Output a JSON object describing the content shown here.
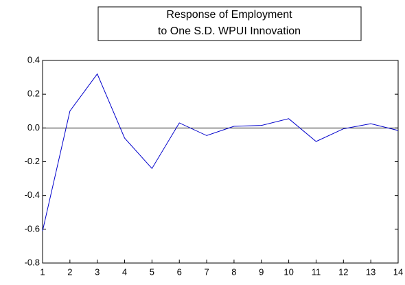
{
  "chart_data": {
    "type": "line",
    "title_lines": [
      "Response of Employment",
      "to One S.D. WPUI Innovation"
    ],
    "categories": [
      "1",
      "2",
      "3",
      "4",
      "5",
      "6",
      "7",
      "8",
      "9",
      "10",
      "11",
      "12",
      "13",
      "14"
    ],
    "series": [
      {
        "color": "#0000cc",
        "values": [
          -0.61,
          0.1,
          0.32,
          -0.06,
          -0.24,
          0.03,
          -0.045,
          0.01,
          0.015,
          0.055,
          -0.08,
          -0.005,
          0.025,
          -0.015
        ]
      }
    ],
    "ylim": [
      -0.8,
      0.4
    ],
    "yticks": [
      0.4,
      0.2,
      {
        "value": 0,
        "label": "0.0"
      },
      -0.2,
      -0.4,
      -0.6,
      -0.8
    ],
    "zero_line": true
  }
}
